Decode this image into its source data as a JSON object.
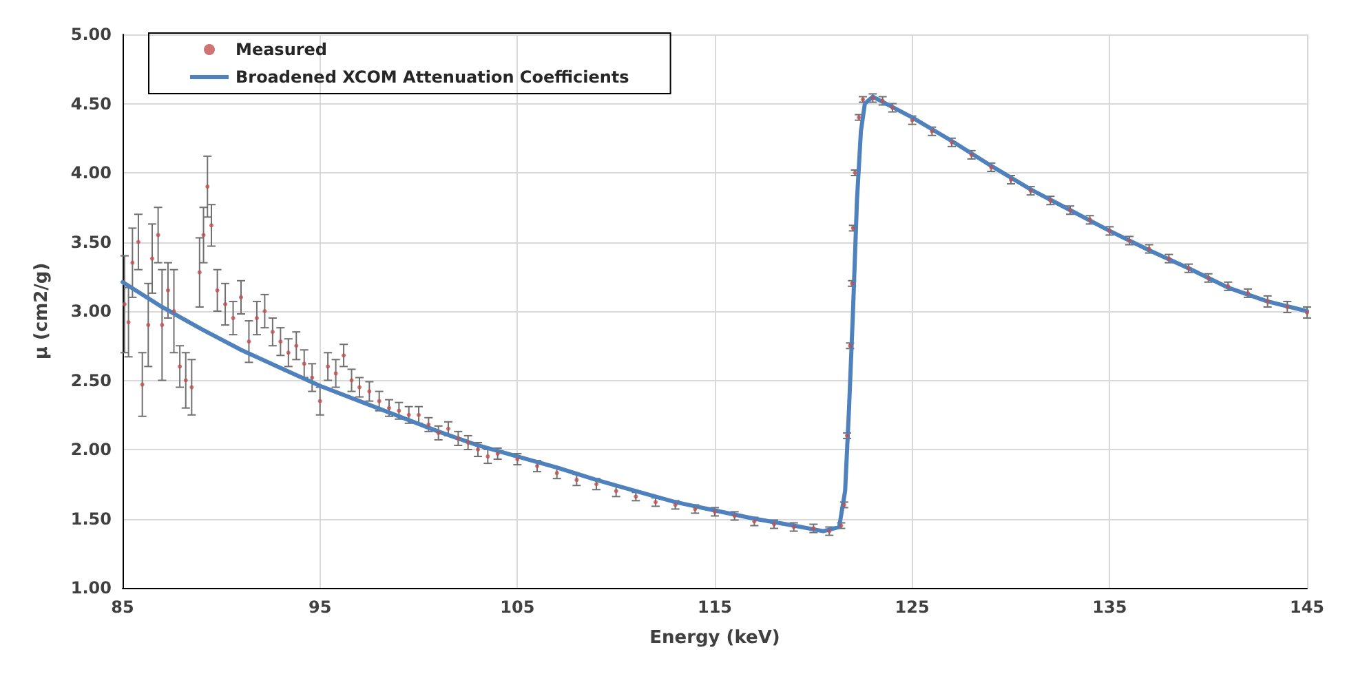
{
  "chart_data": {
    "type": "scatter",
    "xlabel": "Energy (keV)",
    "ylabel": "μ (cm2/g)",
    "xlim": [
      85,
      145
    ],
    "xticks": [
      85,
      95,
      105,
      115,
      125,
      135,
      145
    ],
    "ylim": [
      1,
      5
    ],
    "yticks": [
      {
        "value": 1,
        "label": "1.00"
      },
      {
        "value": 1.5,
        "label": "1.50"
      },
      {
        "value": 2,
        "label": "2.00"
      },
      {
        "value": 2.5,
        "label": "2.50"
      },
      {
        "value": 3,
        "label": "3.00"
      },
      {
        "value": 3.5,
        "label": "3.50"
      },
      {
        "value": 4,
        "label": "4.00"
      },
      {
        "value": 4.5,
        "label": "4.50"
      },
      {
        "value": 5,
        "label": "5.00"
      }
    ],
    "grid": true,
    "legend": "top left",
    "series": [
      {
        "name": "Measured",
        "marker": "circle",
        "color": "#c0504d",
        "x": [
          85.1,
          85.3,
          85.5,
          85.8,
          86.0,
          86.3,
          86.5,
          86.8,
          87.0,
          87.3,
          87.6,
          87.9,
          88.2,
          88.5,
          88.9,
          89.1,
          89.3,
          89.5,
          89.8,
          90.2,
          90.6,
          91.0,
          91.4,
          91.8,
          92.2,
          92.6,
          93.0,
          93.4,
          93.8,
          94.2,
          94.6,
          95.0,
          95.4,
          95.8,
          96.2,
          96.6,
          97.0,
          97.5,
          98.0,
          98.5,
          99.0,
          99.5,
          100.0,
          100.5,
          101.0,
          101.5,
          102.0,
          102.5,
          103.0,
          103.5,
          104.0,
          105.0,
          106.0,
          107.0,
          108.0,
          109.0,
          110.0,
          111.0,
          112.0,
          113.0,
          114.0,
          115.0,
          116.0,
          117.0,
          118.0,
          119.0,
          120.0,
          120.8,
          121.4,
          121.55,
          121.7,
          121.85,
          121.95,
          122.0,
          122.1,
          122.3,
          122.5,
          123.0,
          123.5,
          124.0,
          125.0,
          126.0,
          127.0,
          128.0,
          129.0,
          130.0,
          131.0,
          132.0,
          133.0,
          134.0,
          135.0,
          136.0,
          137.0,
          138.0,
          139.0,
          140.0,
          141.0,
          142.0,
          143.0,
          144.0,
          145.0
        ],
        "values": [
          3.05,
          2.92,
          3.35,
          3.5,
          2.47,
          2.9,
          3.38,
          3.55,
          2.9,
          3.15,
          3.0,
          2.6,
          2.5,
          2.45,
          3.28,
          3.55,
          3.9,
          3.62,
          3.15,
          3.05,
          2.95,
          3.1,
          2.78,
          2.95,
          3.0,
          2.85,
          2.78,
          2.7,
          2.75,
          2.62,
          2.52,
          2.35,
          2.6,
          2.55,
          2.68,
          2.5,
          2.45,
          2.42,
          2.35,
          2.3,
          2.28,
          2.25,
          2.25,
          2.18,
          2.12,
          2.15,
          2.08,
          2.05,
          2.0,
          1.95,
          1.97,
          1.93,
          1.88,
          1.83,
          1.78,
          1.75,
          1.7,
          1.66,
          1.62,
          1.6,
          1.57,
          1.55,
          1.52,
          1.48,
          1.46,
          1.44,
          1.43,
          1.41,
          1.45,
          1.6,
          2.1,
          2.75,
          3.2,
          3.6,
          4.0,
          4.4,
          4.53,
          4.54,
          4.52,
          4.47,
          4.38,
          4.3,
          4.22,
          4.13,
          4.04,
          3.95,
          3.87,
          3.8,
          3.73,
          3.66,
          3.58,
          3.51,
          3.45,
          3.38,
          3.31,
          3.24,
          3.18,
          3.13,
          3.07,
          3.03,
          2.99
        ],
        "errors": [
          0.35,
          0.25,
          0.25,
          0.2,
          0.23,
          0.3,
          0.25,
          0.2,
          0.4,
          0.2,
          0.3,
          0.15,
          0.2,
          0.2,
          0.25,
          0.2,
          0.22,
          0.15,
          0.15,
          0.15,
          0.12,
          0.12,
          0.15,
          0.12,
          0.12,
          0.1,
          0.1,
          0.1,
          0.1,
          0.1,
          0.1,
          0.1,
          0.1,
          0.1,
          0.08,
          0.08,
          0.07,
          0.07,
          0.07,
          0.06,
          0.06,
          0.06,
          0.06,
          0.05,
          0.05,
          0.05,
          0.05,
          0.05,
          0.05,
          0.05,
          0.04,
          0.04,
          0.04,
          0.04,
          0.04,
          0.04,
          0.04,
          0.03,
          0.03,
          0.03,
          0.03,
          0.03,
          0.03,
          0.03,
          0.03,
          0.03,
          0.03,
          0.03,
          0.02,
          0.02,
          0.02,
          0.02,
          0.02,
          0.02,
          0.02,
          0.02,
          0.02,
          0.03,
          0.03,
          0.03,
          0.03,
          0.03,
          0.03,
          0.03,
          0.03,
          0.03,
          0.03,
          0.03,
          0.03,
          0.03,
          0.03,
          0.03,
          0.03,
          0.03,
          0.03,
          0.03,
          0.03,
          0.03,
          0.04,
          0.04,
          0.04
        ]
      },
      {
        "name": "Broadened XCOM Attenuation Coefficients",
        "type": "line",
        "marker": "none",
        "line_style": "solid",
        "color": "#4f81bd",
        "x": [
          85,
          87,
          89,
          91,
          93,
          95,
          97,
          99,
          101,
          103,
          105,
          107,
          109,
          111,
          113,
          115,
          117,
          119,
          120.5,
          121.3,
          121.6,
          121.8,
          122.0,
          122.2,
          122.4,
          122.6,
          123,
          125,
          127,
          129,
          131,
          133,
          135,
          137,
          139,
          141,
          143,
          145
        ],
        "values": [
          3.21,
          3.03,
          2.87,
          2.72,
          2.59,
          2.46,
          2.35,
          2.24,
          2.13,
          2.03,
          1.95,
          1.87,
          1.78,
          1.7,
          1.62,
          1.56,
          1.5,
          1.45,
          1.41,
          1.44,
          1.7,
          2.3,
          3.0,
          3.8,
          4.3,
          4.5,
          4.55,
          4.4,
          4.23,
          4.05,
          3.88,
          3.73,
          3.58,
          3.44,
          3.31,
          3.17,
          3.07,
          3.0
        ]
      }
    ]
  }
}
